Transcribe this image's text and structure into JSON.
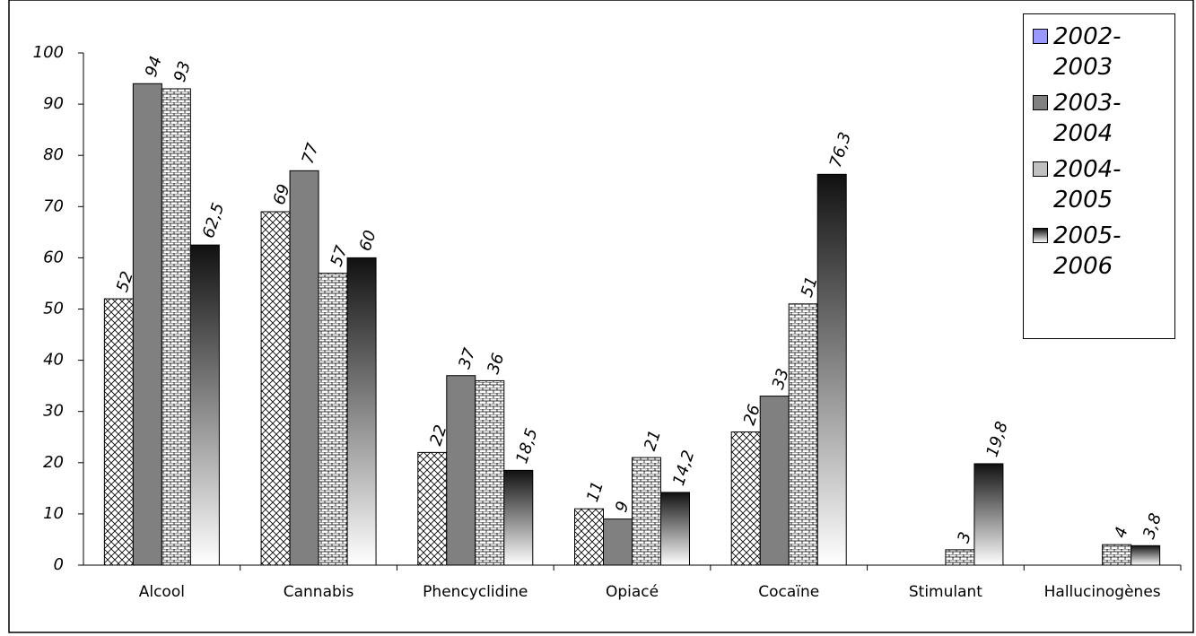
{
  "chart_data": {
    "type": "bar",
    "categories": [
      "Alcool",
      "Cannabis",
      "Phencyclidine",
      "Opiacé",
      "Cocaïne",
      "Stimulant",
      "Hallucinogènes"
    ],
    "series": [
      {
        "name": "2002-2003",
        "color": "#9999ff",
        "pattern": "crosshatch",
        "values": [
          52,
          69,
          22,
          11,
          26,
          null,
          null
        ]
      },
      {
        "name": "2003-2004",
        "color": "#808080",
        "pattern": "solid",
        "values": [
          94,
          77,
          37,
          9,
          33,
          null,
          null
        ]
      },
      {
        "name": "2004-2005",
        "color": "#c0c0c0",
        "pattern": "brick",
        "values": [
          93,
          57,
          36,
          21,
          51,
          3,
          4
        ]
      },
      {
        "name": "2005-2006",
        "color": "#000000",
        "pattern": "gradient",
        "values": [
          62.5,
          60,
          18.5,
          14.2,
          76.3,
          19.8,
          3.8
        ],
        "value_labels": [
          "62,5",
          "60",
          "18,5",
          "14,2",
          "76,3",
          "19,8",
          "3,8"
        ]
      }
    ],
    "ylim": [
      0,
      100
    ],
    "yticks": [
      0,
      10,
      20,
      30,
      40,
      50,
      60,
      70,
      80,
      90,
      100
    ],
    "legend": "right"
  }
}
